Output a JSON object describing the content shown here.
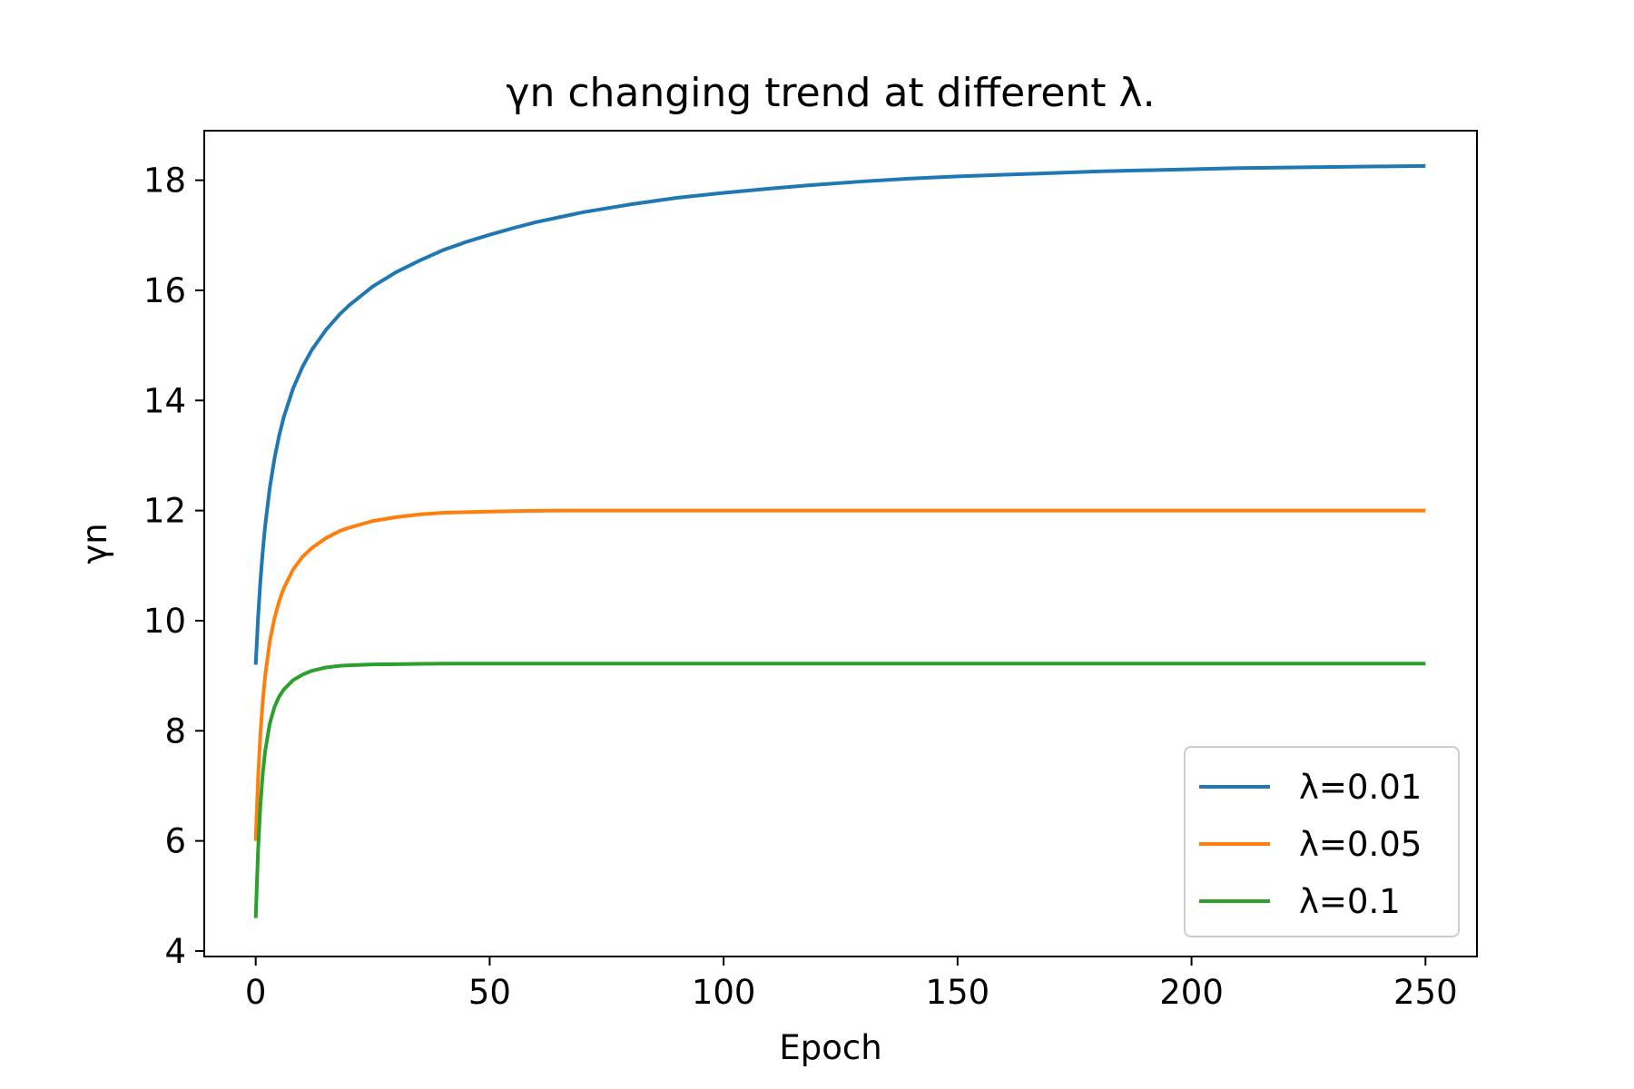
{
  "chart_data": {
    "type": "line",
    "title": "γn changing trend at different λ.",
    "xlabel": "Epoch",
    "ylabel": "γn",
    "xlim": [
      -11,
      261
    ],
    "ylim": [
      3.9,
      18.9
    ],
    "xticks": [
      0,
      50,
      100,
      150,
      200,
      250
    ],
    "yticks": [
      4,
      6,
      8,
      10,
      12,
      14,
      16,
      18
    ],
    "grid": false,
    "legend_position": "lower-right",
    "x": [
      0,
      0.5,
      1,
      1.5,
      2,
      3,
      4,
      5,
      6,
      8,
      10,
      12,
      15,
      18,
      20,
      25,
      30,
      35,
      40,
      45,
      50,
      55,
      60,
      65,
      70,
      75,
      80,
      90,
      100,
      110,
      120,
      130,
      140,
      150,
      160,
      170,
      180,
      190,
      200,
      210,
      220,
      230,
      240,
      250
    ],
    "series": [
      {
        "name": "λ=0.01",
        "color": "#1f77b4",
        "values": [
          9.2,
          10.05,
          10.72,
          11.26,
          11.71,
          12.41,
          12.94,
          13.36,
          13.7,
          14.22,
          14.61,
          14.92,
          15.28,
          15.57,
          15.73,
          16.07,
          16.33,
          16.54,
          16.73,
          16.88,
          17.01,
          17.13,
          17.24,
          17.33,
          17.42,
          17.49,
          17.56,
          17.68,
          17.77,
          17.85,
          17.92,
          17.98,
          18.03,
          18.07,
          18.1,
          18.13,
          18.16,
          18.18,
          18.2,
          18.22,
          18.23,
          18.24,
          18.25,
          18.26
        ]
      },
      {
        "name": "λ=0.05",
        "color": "#ff7f0e",
        "values": [
          6.0,
          7.13,
          7.94,
          8.53,
          8.98,
          9.62,
          10.04,
          10.35,
          10.59,
          10.93,
          11.16,
          11.32,
          11.5,
          11.63,
          11.69,
          11.81,
          11.88,
          11.93,
          11.96,
          11.97,
          11.98,
          11.99,
          11.995,
          12.0,
          12.0,
          12.0,
          12.0,
          12.0,
          12.0,
          12.0,
          12.0,
          12.0,
          12.0,
          12.0,
          12.0,
          12.0,
          12.0,
          12.0,
          12.0,
          12.0,
          12.0,
          12.0,
          12.0,
          12.0
        ]
      },
      {
        "name": "λ=0.1",
        "color": "#2ca02c",
        "values": [
          4.6,
          5.82,
          6.65,
          7.22,
          7.62,
          8.13,
          8.43,
          8.62,
          8.75,
          8.92,
          9.02,
          9.09,
          9.15,
          9.18,
          9.19,
          9.205,
          9.21,
          9.215,
          9.22,
          9.22,
          9.22,
          9.22,
          9.22,
          9.22,
          9.22,
          9.22,
          9.22,
          9.22,
          9.22,
          9.22,
          9.22,
          9.22,
          9.22,
          9.22,
          9.22,
          9.22,
          9.22,
          9.22,
          9.22,
          9.22,
          9.22,
          9.22,
          9.22,
          9.22
        ]
      }
    ]
  }
}
